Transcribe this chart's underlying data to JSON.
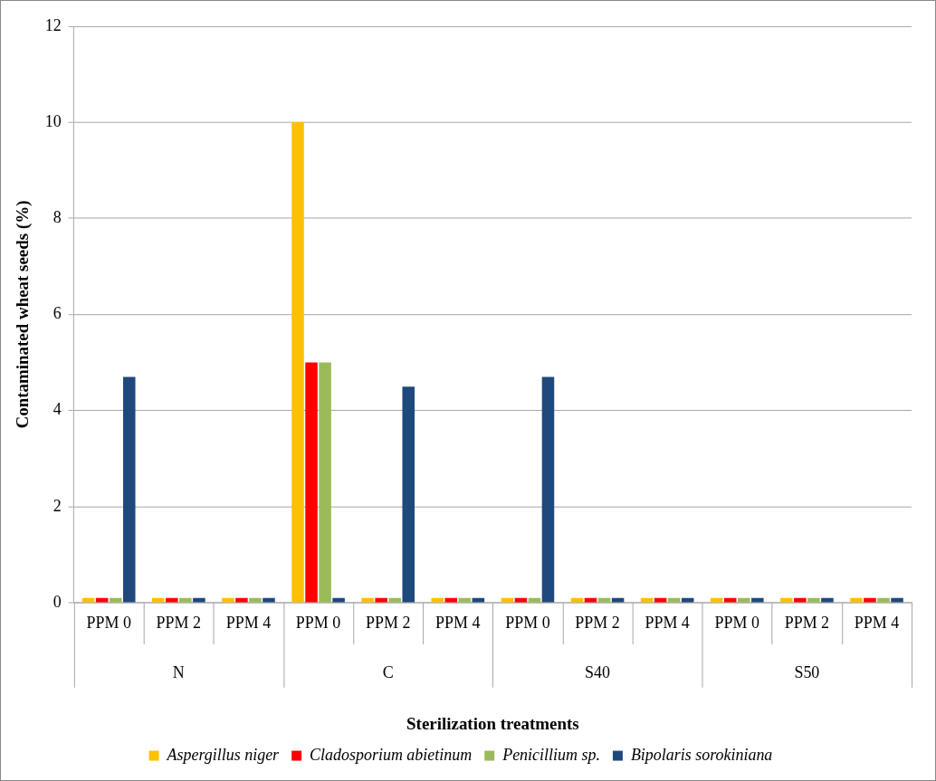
{
  "chart_data": {
    "type": "bar",
    "xlabel": "Sterilization treatments",
    "ylabel": "Contaminated wheat seeds (%)",
    "categories": [
      "PPM 0",
      "PPM 2",
      "PPM 4",
      "PPM 0",
      "PPM 2",
      "PPM 4",
      "PPM 0",
      "PPM 2",
      "PPM 4",
      "PPM 0",
      "PPM 2",
      "PPM 4"
    ],
    "annotations": [
      "N",
      "C",
      "S40",
      "S50"
    ],
    "series": [
      {
        "name": "Aspergillus niger",
        "color": "#ffc000",
        "values": [
          0.1,
          0.1,
          0.1,
          10,
          0.1,
          0.1,
          0.1,
          0.1,
          0.1,
          0.1,
          0.1,
          0.1
        ]
      },
      {
        "name": "Cladosporium abietinum",
        "color": "#ff0000",
        "values": [
          0.1,
          0.1,
          0.1,
          5,
          0.1,
          0.1,
          0.1,
          0.1,
          0.1,
          0.1,
          0.1,
          0.1
        ]
      },
      {
        "name": "Penicillium sp.",
        "color": "#9bbb59",
        "values": [
          0.1,
          0.1,
          0.1,
          5,
          0.1,
          0.1,
          0.1,
          0.1,
          0.1,
          0.1,
          0.1,
          0.1
        ]
      },
      {
        "name": "Bipolaris sorokiniana",
        "color": "#1f497d",
        "values": [
          4.7,
          0.1,
          0.1,
          0.1,
          4.5,
          0.1,
          4.7,
          0.1,
          0.1,
          0.1,
          0.1,
          0.1
        ]
      }
    ],
    "ylim": [
      0,
      12
    ],
    "yticks": [
      0,
      2,
      4,
      6,
      8,
      10,
      12
    ],
    "grid": "y",
    "legend": "bottom"
  }
}
